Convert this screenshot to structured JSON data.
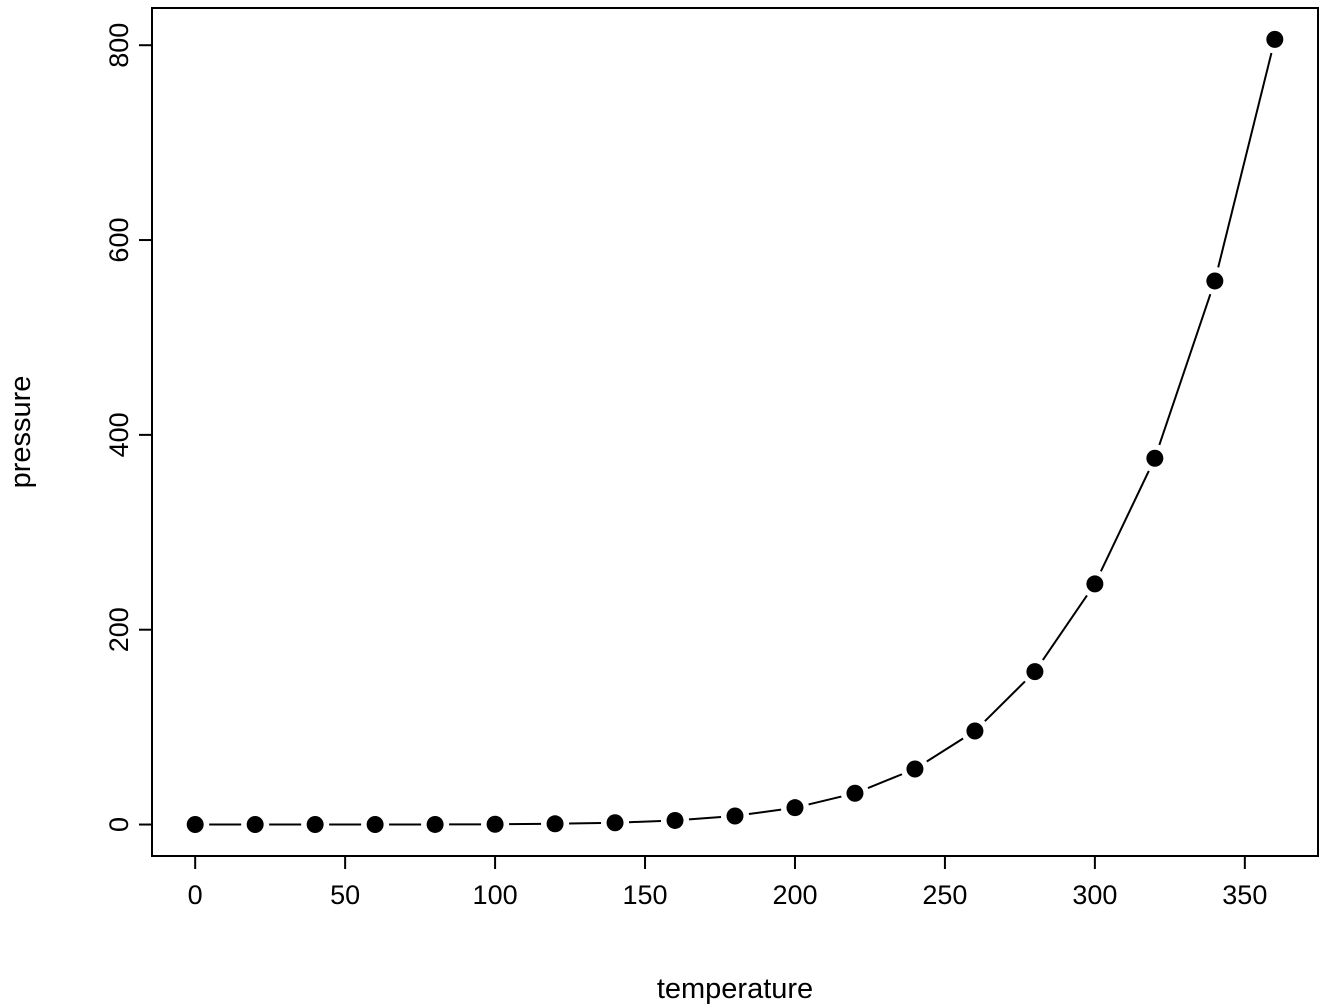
{
  "figure": {
    "background": "#ffffff"
  },
  "chart_data": {
    "type": "line",
    "subtype": "points-connected-by-segments",
    "title": "",
    "xlabel": "temperature",
    "ylabel": "pressure",
    "x": [
      0,
      20,
      40,
      60,
      80,
      100,
      120,
      140,
      160,
      180,
      200,
      220,
      240,
      260,
      280,
      300,
      320,
      340,
      360
    ],
    "y": [
      0.0002,
      0.0012,
      0.006,
      0.03,
      0.09,
      0.27,
      0.75,
      1.85,
      4.2,
      8.8,
      17.3,
      32.1,
      57.0,
      96.0,
      157.0,
      247.0,
      376.0,
      558.0,
      806.0
    ],
    "x_tick_labels": [
      "0",
      "50",
      "100",
      "150",
      "200",
      "250",
      "300",
      "350"
    ],
    "x_tick_values": [
      0,
      50,
      100,
      150,
      200,
      250,
      300,
      350
    ],
    "y_tick_labels": [
      "0",
      "200",
      "400",
      "600",
      "800"
    ],
    "y_tick_values": [
      0,
      200,
      400,
      600,
      800
    ],
    "xlim": [
      -14.4,
      374.4
    ],
    "ylim": [
      -32.3,
      838.2
    ],
    "grid": false,
    "legend_position": "none",
    "marker": "filled-circle",
    "point_color": "#000000",
    "line_color": "#000000",
    "axis_color": "#000000",
    "background": "#ffffff"
  }
}
